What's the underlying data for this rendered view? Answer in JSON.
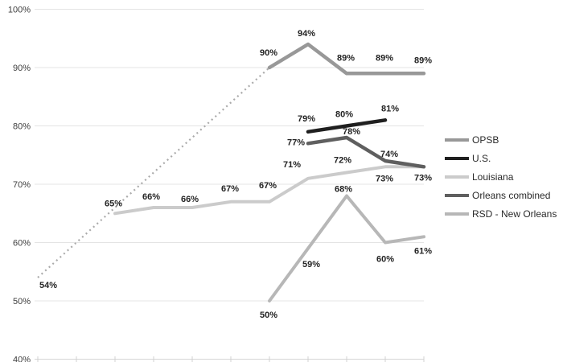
{
  "chart_data": {
    "type": "line",
    "title": "",
    "grid": "horizontal",
    "legend_position": "right",
    "y_axis": {
      "range": [
        40,
        100
      ],
      "ticks": [
        {
          "value": 100,
          "label": "100%"
        },
        {
          "value": 90,
          "label": "90%"
        },
        {
          "value": 80,
          "label": "80%"
        },
        {
          "value": 70,
          "label": "70%"
        },
        {
          "value": 60,
          "label": "60%"
        },
        {
          "value": 50,
          "label": "50%"
        },
        {
          "value": 40,
          "label": "40%"
        }
      ]
    },
    "x_axis": {
      "tick_count": 11,
      "labels": []
    },
    "series": [
      {
        "id": "opsb-dotted",
        "name": "OPSB (projected segment)",
        "color": "#aaaaaa",
        "style": "dotted",
        "width": 2.2,
        "points": [
          {
            "i": 0,
            "v": 54,
            "label": "54%"
          },
          {
            "i": 6,
            "v": 90,
            "label": null
          }
        ]
      },
      {
        "id": "louisiana",
        "name": "Louisiana",
        "color": "#cbcbcb",
        "style": "solid",
        "width": 4,
        "points": [
          {
            "i": 2,
            "v": 65,
            "label": "65%"
          },
          {
            "i": 3,
            "v": 66,
            "label": "66%"
          },
          {
            "i": 4,
            "v": 66,
            "label": "66%"
          },
          {
            "i": 5,
            "v": 67,
            "label": "67%"
          },
          {
            "i": 6,
            "v": 67,
            "label": "67%"
          },
          {
            "i": 7,
            "v": 71,
            "label": "71%"
          },
          {
            "i": 8,
            "v": 72,
            "label": "72%"
          },
          {
            "i": 9,
            "v": 73,
            "label": "73%"
          },
          {
            "i": 10,
            "v": 73,
            "label": null
          }
        ]
      },
      {
        "id": "rsd",
        "name": "RSD - New Orleans",
        "color": "#b7b7b7",
        "style": "solid",
        "width": 4,
        "points": [
          {
            "i": 6,
            "v": 50,
            "label": "50%"
          },
          {
            "i": 7,
            "v": 59,
            "label": "59%"
          },
          {
            "i": 8,
            "v": 68,
            "label": "68%"
          },
          {
            "i": 9,
            "v": 60,
            "label": "60%"
          },
          {
            "i": 10,
            "v": 61,
            "label": "61%"
          }
        ]
      },
      {
        "id": "opsb",
        "name": "OPSB",
        "color": "#989898",
        "style": "solid",
        "width": 4.5,
        "points": [
          {
            "i": 6,
            "v": 90,
            "label": "90%"
          },
          {
            "i": 7,
            "v": 94,
            "label": "94%"
          },
          {
            "i": 8,
            "v": 89,
            "label": "89%"
          },
          {
            "i": 9,
            "v": 89,
            "label": "89%"
          },
          {
            "i": 10,
            "v": 89,
            "label": "89%"
          }
        ]
      },
      {
        "id": "orleans",
        "name": "Orleans combined",
        "color": "#5f5f5f",
        "style": "solid",
        "width": 4.5,
        "points": [
          {
            "i": 7,
            "v": 77,
            "label": "77%"
          },
          {
            "i": 8,
            "v": 78,
            "label": "78%"
          },
          {
            "i": 9,
            "v": 74,
            "label": "74%"
          },
          {
            "i": 10,
            "v": 73,
            "label": "73%"
          }
        ]
      },
      {
        "id": "us",
        "name": "U.S.",
        "color": "#1f1f1f",
        "style": "solid",
        "width": 4.5,
        "points": [
          {
            "i": 7,
            "v": 79,
            "label": "79%"
          },
          {
            "i": 8,
            "v": 80,
            "label": "80%"
          },
          {
            "i": 9,
            "v": 81,
            "label": "81%"
          }
        ]
      }
    ],
    "legend": [
      {
        "name": "OPSB",
        "color": "#989898"
      },
      {
        "name": "U.S.",
        "color": "#1f1f1f"
      },
      {
        "name": "Louisiana",
        "color": "#cbcbcb"
      },
      {
        "name": "Orleans combined",
        "color": "#5f5f5f"
      },
      {
        "name": "RSD - New Orleans",
        "color": "#b7b7b7"
      }
    ]
  }
}
